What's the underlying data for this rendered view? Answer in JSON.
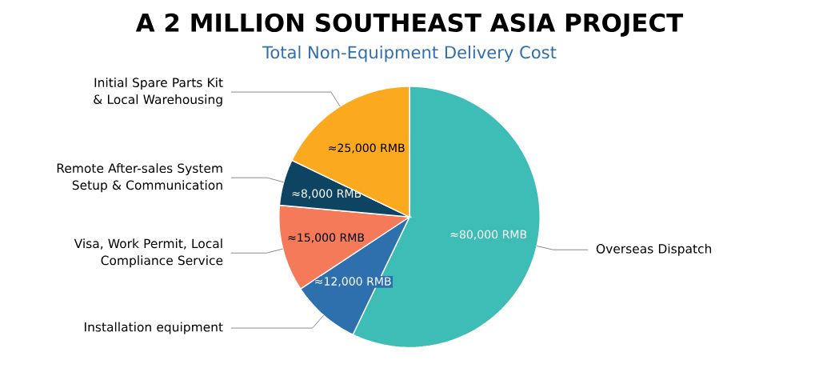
{
  "chart_data": {
    "type": "pie",
    "title": "A 2 MILLION SOUTHEAST ASIA PROJECT",
    "subtitle": "Total Non-Equipment Delivery Cost",
    "categories": [
      "Overseas Dispatch",
      "Installation equipment",
      "Visa, Work Permit, Local Compliance Service",
      "Remote After-sales System Setup & Communication",
      "Initial Spare Parts Kit & Local Warehousing"
    ],
    "values": [
      80000,
      12000,
      15000,
      8000,
      25000
    ],
    "colors": [
      "#3dbdb5",
      "#2e6fad",
      "#f47a5a",
      "#0d4461",
      "#fba91e"
    ],
    "value_labels": [
      "≈80,000 RMB",
      "≈12,000 RMB",
      "≈15,000 RMB",
      "≈8,000 RMB",
      "≈25,000 RMB"
    ]
  }
}
